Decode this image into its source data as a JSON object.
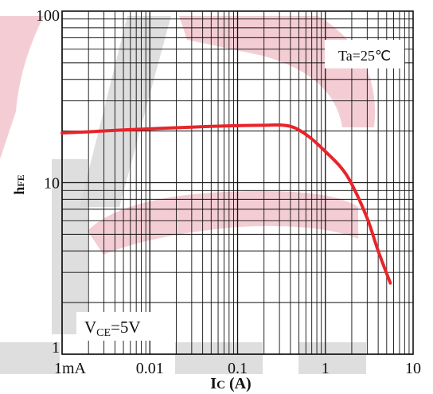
{
  "chart_data": {
    "type": "line",
    "x_scale": "log",
    "y_scale": "log",
    "xlim": [
      0.001,
      10
    ],
    "ylim": [
      1,
      100
    ],
    "grid": true,
    "x_ticks": [
      {
        "value": 0.001,
        "label": "1mA"
      },
      {
        "value": 0.01,
        "label": "0.01"
      },
      {
        "value": 0.1,
        "label": "0.1"
      },
      {
        "value": 1,
        "label": "1"
      },
      {
        "value": 10,
        "label": "10"
      }
    ],
    "y_ticks": [
      {
        "value": 1,
        "label": "1"
      },
      {
        "value": 10,
        "label": "10"
      },
      {
        "value": 100,
        "label": "100"
      }
    ],
    "xlabel": {
      "main": "I",
      "sub": "C",
      "unit": " (A)"
    },
    "ylabel": {
      "main": "h",
      "sub": "FE"
    },
    "annotations": {
      "temperature": "Ta=25℃",
      "condition": {
        "main": "V",
        "sub": "CE",
        "rest": "=5V"
      }
    },
    "series": [
      {
        "color": "#e8242b",
        "x": [
          0.001,
          0.002,
          0.005,
          0.01,
          0.02,
          0.05,
          0.1,
          0.2,
          0.3,
          0.4,
          0.5,
          0.7,
          1.0,
          1.5,
          2.0,
          3.0,
          4.0,
          5.5
        ],
        "y": [
          19.5,
          19.8,
          20.3,
          20.6,
          20.9,
          21.3,
          21.5,
          21.6,
          21.7,
          21.3,
          20.3,
          18.0,
          15.2,
          12.3,
          9.8,
          6.2,
          4.0,
          2.6
        ]
      }
    ]
  }
}
